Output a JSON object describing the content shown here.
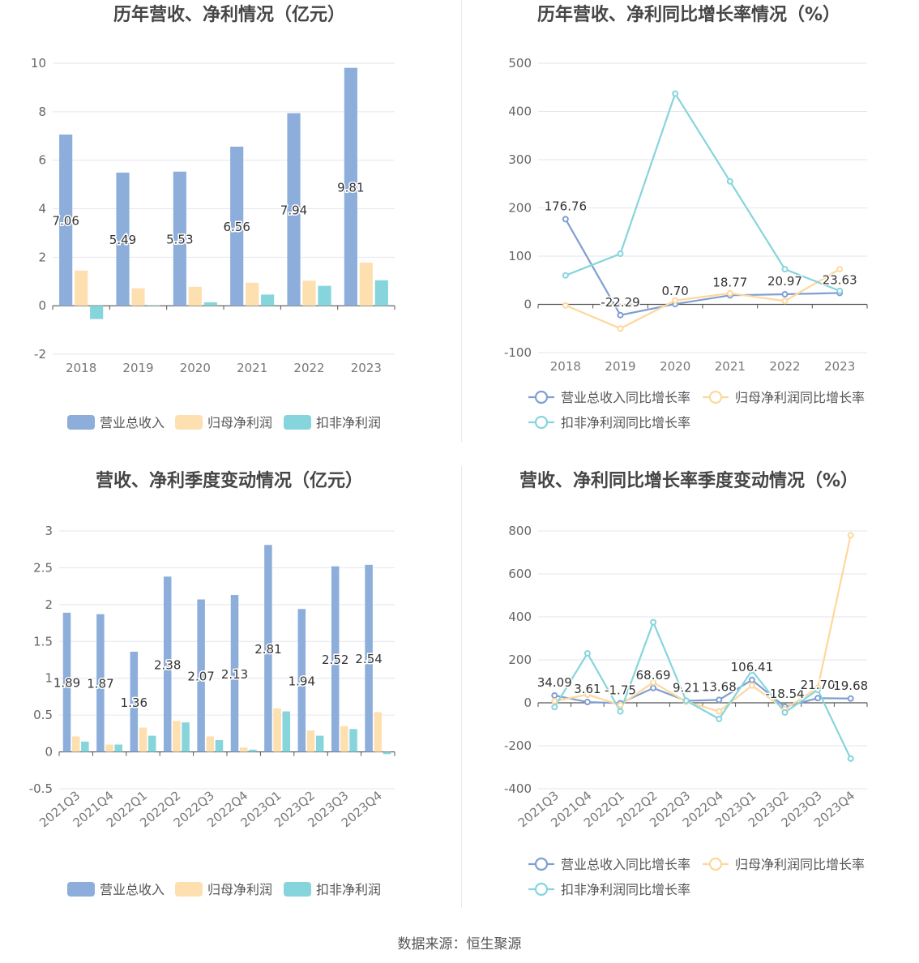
{
  "source_text": "数据来源：恒生聚源",
  "chart_data": [
    {
      "id": "annual_amount",
      "type": "bar",
      "title": "历年营收、净利情况（亿元）",
      "categories": [
        "2018",
        "2019",
        "2020",
        "2021",
        "2022",
        "2023"
      ],
      "ylim": [
        -2,
        10
      ],
      "yticks": [
        -2,
        0,
        2,
        4,
        6,
        8,
        10
      ],
      "legend_position": "bottom",
      "grid": true,
      "series": [
        {
          "name": "营业总收入",
          "color": "#8daedb",
          "values": [
            7.06,
            5.49,
            5.53,
            6.56,
            7.94,
            9.81
          ],
          "labels": [
            "7.06",
            "5.49",
            "5.53",
            "6.56",
            "7.94",
            "9.81"
          ]
        },
        {
          "name": "归母净利润",
          "color": "#fddfb0",
          "values": [
            1.45,
            0.72,
            0.78,
            0.95,
            1.03,
            1.78
          ]
        },
        {
          "name": "扣非净利润",
          "color": "#86d5dc",
          "values": [
            -0.55,
            0.02,
            0.14,
            0.46,
            0.82,
            1.05
          ]
        }
      ]
    },
    {
      "id": "annual_growth",
      "type": "line",
      "title": "历年营收、净利同比增长率情况（%）",
      "categories": [
        "2018",
        "2019",
        "2020",
        "2021",
        "2022",
        "2023"
      ],
      "ylim": [
        -100,
        500
      ],
      "yticks": [
        -100,
        0,
        100,
        200,
        300,
        400,
        500
      ],
      "legend_position": "bottom",
      "grid": true,
      "series": [
        {
          "name": "营业总收入同比增长率",
          "color": "#7f9fd1",
          "values": [
            176.76,
            -22.29,
            0.7,
            18.77,
            20.97,
            23.63
          ],
          "labels": [
            "176.76",
            "-22.29",
            "0.70",
            "18.77",
            "20.97",
            "23.63"
          ]
        },
        {
          "name": "归母净利润同比增长率",
          "color": "#fdd89d",
          "values": [
            -2,
            -50,
            8,
            23,
            7,
            73
          ]
        },
        {
          "name": "扣非净利润同比增长率",
          "color": "#86d5dc",
          "values": [
            60,
            105,
            437,
            255,
            73,
            28
          ]
        }
      ]
    },
    {
      "id": "quarterly_amount",
      "type": "bar",
      "title": "营收、净利季度变动情况（亿元）",
      "categories": [
        "2021Q3",
        "2021Q4",
        "2022Q1",
        "2022Q2",
        "2022Q3",
        "2022Q4",
        "2023Q1",
        "2023Q2",
        "2023Q3",
        "2023Q4"
      ],
      "ylim": [
        -0.5,
        3
      ],
      "yticks": [
        -0.5,
        0,
        0.5,
        1,
        1.5,
        2,
        2.5,
        3
      ],
      "legend_position": "bottom",
      "grid": true,
      "series": [
        {
          "name": "营业总收入",
          "color": "#8daedb",
          "values": [
            1.89,
            1.87,
            1.36,
            2.38,
            2.07,
            2.13,
            2.81,
            1.94,
            2.52,
            2.54
          ],
          "labels": [
            "1.89",
            "1.87",
            "1.36",
            "2.38",
            "2.07",
            "2.13",
            "2.81",
            "1.94",
            "2.52",
            "2.54"
          ]
        },
        {
          "name": "归母净利润",
          "color": "#fddfb0",
          "values": [
            0.21,
            0.1,
            0.33,
            0.42,
            0.21,
            0.06,
            0.59,
            0.29,
            0.35,
            0.54
          ]
        },
        {
          "name": "扣非净利润",
          "color": "#86d5dc",
          "values": [
            0.14,
            0.1,
            0.22,
            0.4,
            0.16,
            0.03,
            0.55,
            0.22,
            0.31,
            -0.03
          ]
        }
      ]
    },
    {
      "id": "quarterly_growth",
      "type": "line",
      "title": "营收、净利同比增长率季度变动情况（%）",
      "categories": [
        "2021Q3",
        "2021Q4",
        "2022Q1",
        "2022Q2",
        "2022Q3",
        "2022Q4",
        "2023Q1",
        "2023Q2",
        "2023Q3",
        "2023Q4"
      ],
      "ylim": [
        -400,
        800
      ],
      "yticks": [
        -400,
        -200,
        0,
        200,
        400,
        600,
        800
      ],
      "legend_position": "bottom",
      "grid": true,
      "series": [
        {
          "name": "营业总收入同比增长率",
          "color": "#7f9fd1",
          "values": [
            34.09,
            3.61,
            -1.75,
            68.69,
            9.21,
            13.68,
            106.41,
            -18.54,
            21.7,
            19.68
          ],
          "labels": [
            "34.09",
            "3.61",
            "-1.75",
            "68.69",
            "9.21",
            "13.68",
            "106.41",
            "-18.54",
            "21.70",
            "19.68"
          ]
        },
        {
          "name": "归母净利润同比增长率",
          "color": "#fdd89d",
          "values": [
            8,
            38,
            -10,
            95,
            5,
            -40,
            80,
            -30,
            70,
            780
          ]
        },
        {
          "name": "扣非净利润同比增长率",
          "color": "#86d5dc",
          "values": [
            -20,
            230,
            -40,
            375,
            10,
            -75,
            150,
            -45,
            60,
            -260
          ]
        }
      ]
    }
  ]
}
